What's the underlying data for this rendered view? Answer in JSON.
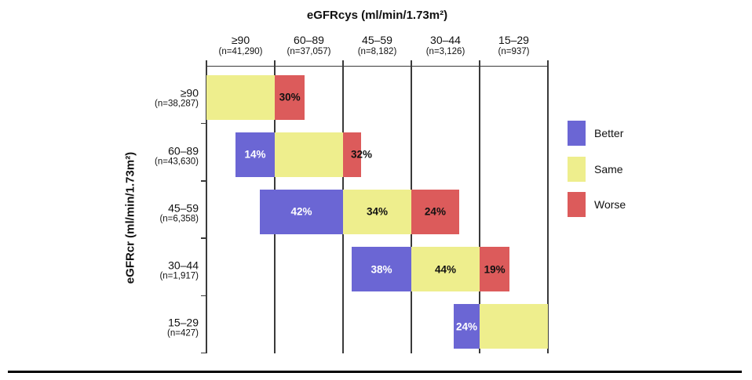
{
  "figure": {
    "title": "eGFRcys (ml/min/1.73m²)",
    "y_axis_title": "eGFRcr (ml/min/1.73m²)"
  },
  "columns": [
    {
      "range": "≥90",
      "n": "(n=41,290)"
    },
    {
      "range": "60–89",
      "n": "(n=37,057)"
    },
    {
      "range": "45–59",
      "n": "(n=8,182)"
    },
    {
      "range": "30–44",
      "n": "(n=3,126)"
    },
    {
      "range": "15–29",
      "n": "(n=937)"
    }
  ],
  "rows": [
    {
      "range": "≥90",
      "n": "(n=38,287)"
    },
    {
      "range": "60–89",
      "n": "(n=43,630)"
    },
    {
      "range": "45–59",
      "n": "(n=6,358)"
    },
    {
      "range": "30–44",
      "n": "(n=1,917)"
    },
    {
      "range": "15–29",
      "n": "(n=427)"
    }
  ],
  "legend": [
    {
      "key": "better",
      "label": "Better"
    },
    {
      "key": "same",
      "label": "Same"
    },
    {
      "key": "worse",
      "label": "Worse"
    }
  ],
  "colors": {
    "better": "#6b66d4",
    "same": "#eeee8d",
    "worse": "#dc5b5b",
    "label_on_better": "#ffffff",
    "label_on_other": "#111111",
    "line": "#3a3a3a"
  },
  "chart_data": {
    "type": "bar",
    "subtype": "reclassification-matrix",
    "title": "eGFRcys (ml/min/1.73m²)",
    "xlabel": "eGFRcys (ml/min/1.73m²)",
    "ylabel": "eGFRcr (ml/min/1.73m²)",
    "x_categories": [
      "≥90",
      "60–89",
      "45–59",
      "30–44",
      "15–29"
    ],
    "x_category_n": [
      41290,
      37057,
      8182,
      3126,
      937
    ],
    "y_categories": [
      "≥90",
      "60–89",
      "45–59",
      "30–44",
      "15–29"
    ],
    "y_category_n": [
      38287,
      43630,
      6358,
      1917,
      427
    ],
    "legend_entries": [
      "Better",
      "Same",
      "Worse"
    ],
    "legend_position": "right",
    "grid": "vertical-only",
    "rows": [
      {
        "egfr_cr": "≥90",
        "n": 38287,
        "segments": [
          {
            "class": "same",
            "col_from": 0,
            "col_to": 1,
            "label": ""
          },
          {
            "class": "worse",
            "col_from": 1,
            "col_to": 1.44,
            "label": "30%"
          }
        ]
      },
      {
        "egfr_cr": "60–89",
        "n": 43630,
        "segments": [
          {
            "class": "better",
            "col_from": 0.425,
            "col_to": 1,
            "label": "14%"
          },
          {
            "class": "same",
            "col_from": 1,
            "col_to": 2,
            "label": ""
          },
          {
            "class": "worse",
            "col_from": 2,
            "col_to": 2.27,
            "label": "32%",
            "label_at": "edge"
          }
        ]
      },
      {
        "egfr_cr": "45–59",
        "n": 6358,
        "segments": [
          {
            "class": "better",
            "col_from": 0.782,
            "col_to": 2,
            "label": "42%"
          },
          {
            "class": "same",
            "col_from": 2,
            "col_to": 3,
            "label": "34%"
          },
          {
            "class": "worse",
            "col_from": 3,
            "col_to": 3.7,
            "label": "24%"
          }
        ]
      },
      {
        "egfr_cr": "30–44",
        "n": 1917,
        "segments": [
          {
            "class": "better",
            "col_from": 2.126,
            "col_to": 3,
            "label": "38%"
          },
          {
            "class": "same",
            "col_from": 3,
            "col_to": 4,
            "label": "44%"
          },
          {
            "class": "worse",
            "col_from": 4,
            "col_to": 4.44,
            "label": "19%"
          }
        ]
      },
      {
        "egfr_cr": "15–29",
        "n": 427,
        "segments": [
          {
            "class": "better",
            "col_from": 3.621,
            "col_to": 4,
            "label": "24%"
          },
          {
            "class": "same",
            "col_from": 4,
            "col_to": 5,
            "label": ""
          }
        ]
      }
    ]
  }
}
